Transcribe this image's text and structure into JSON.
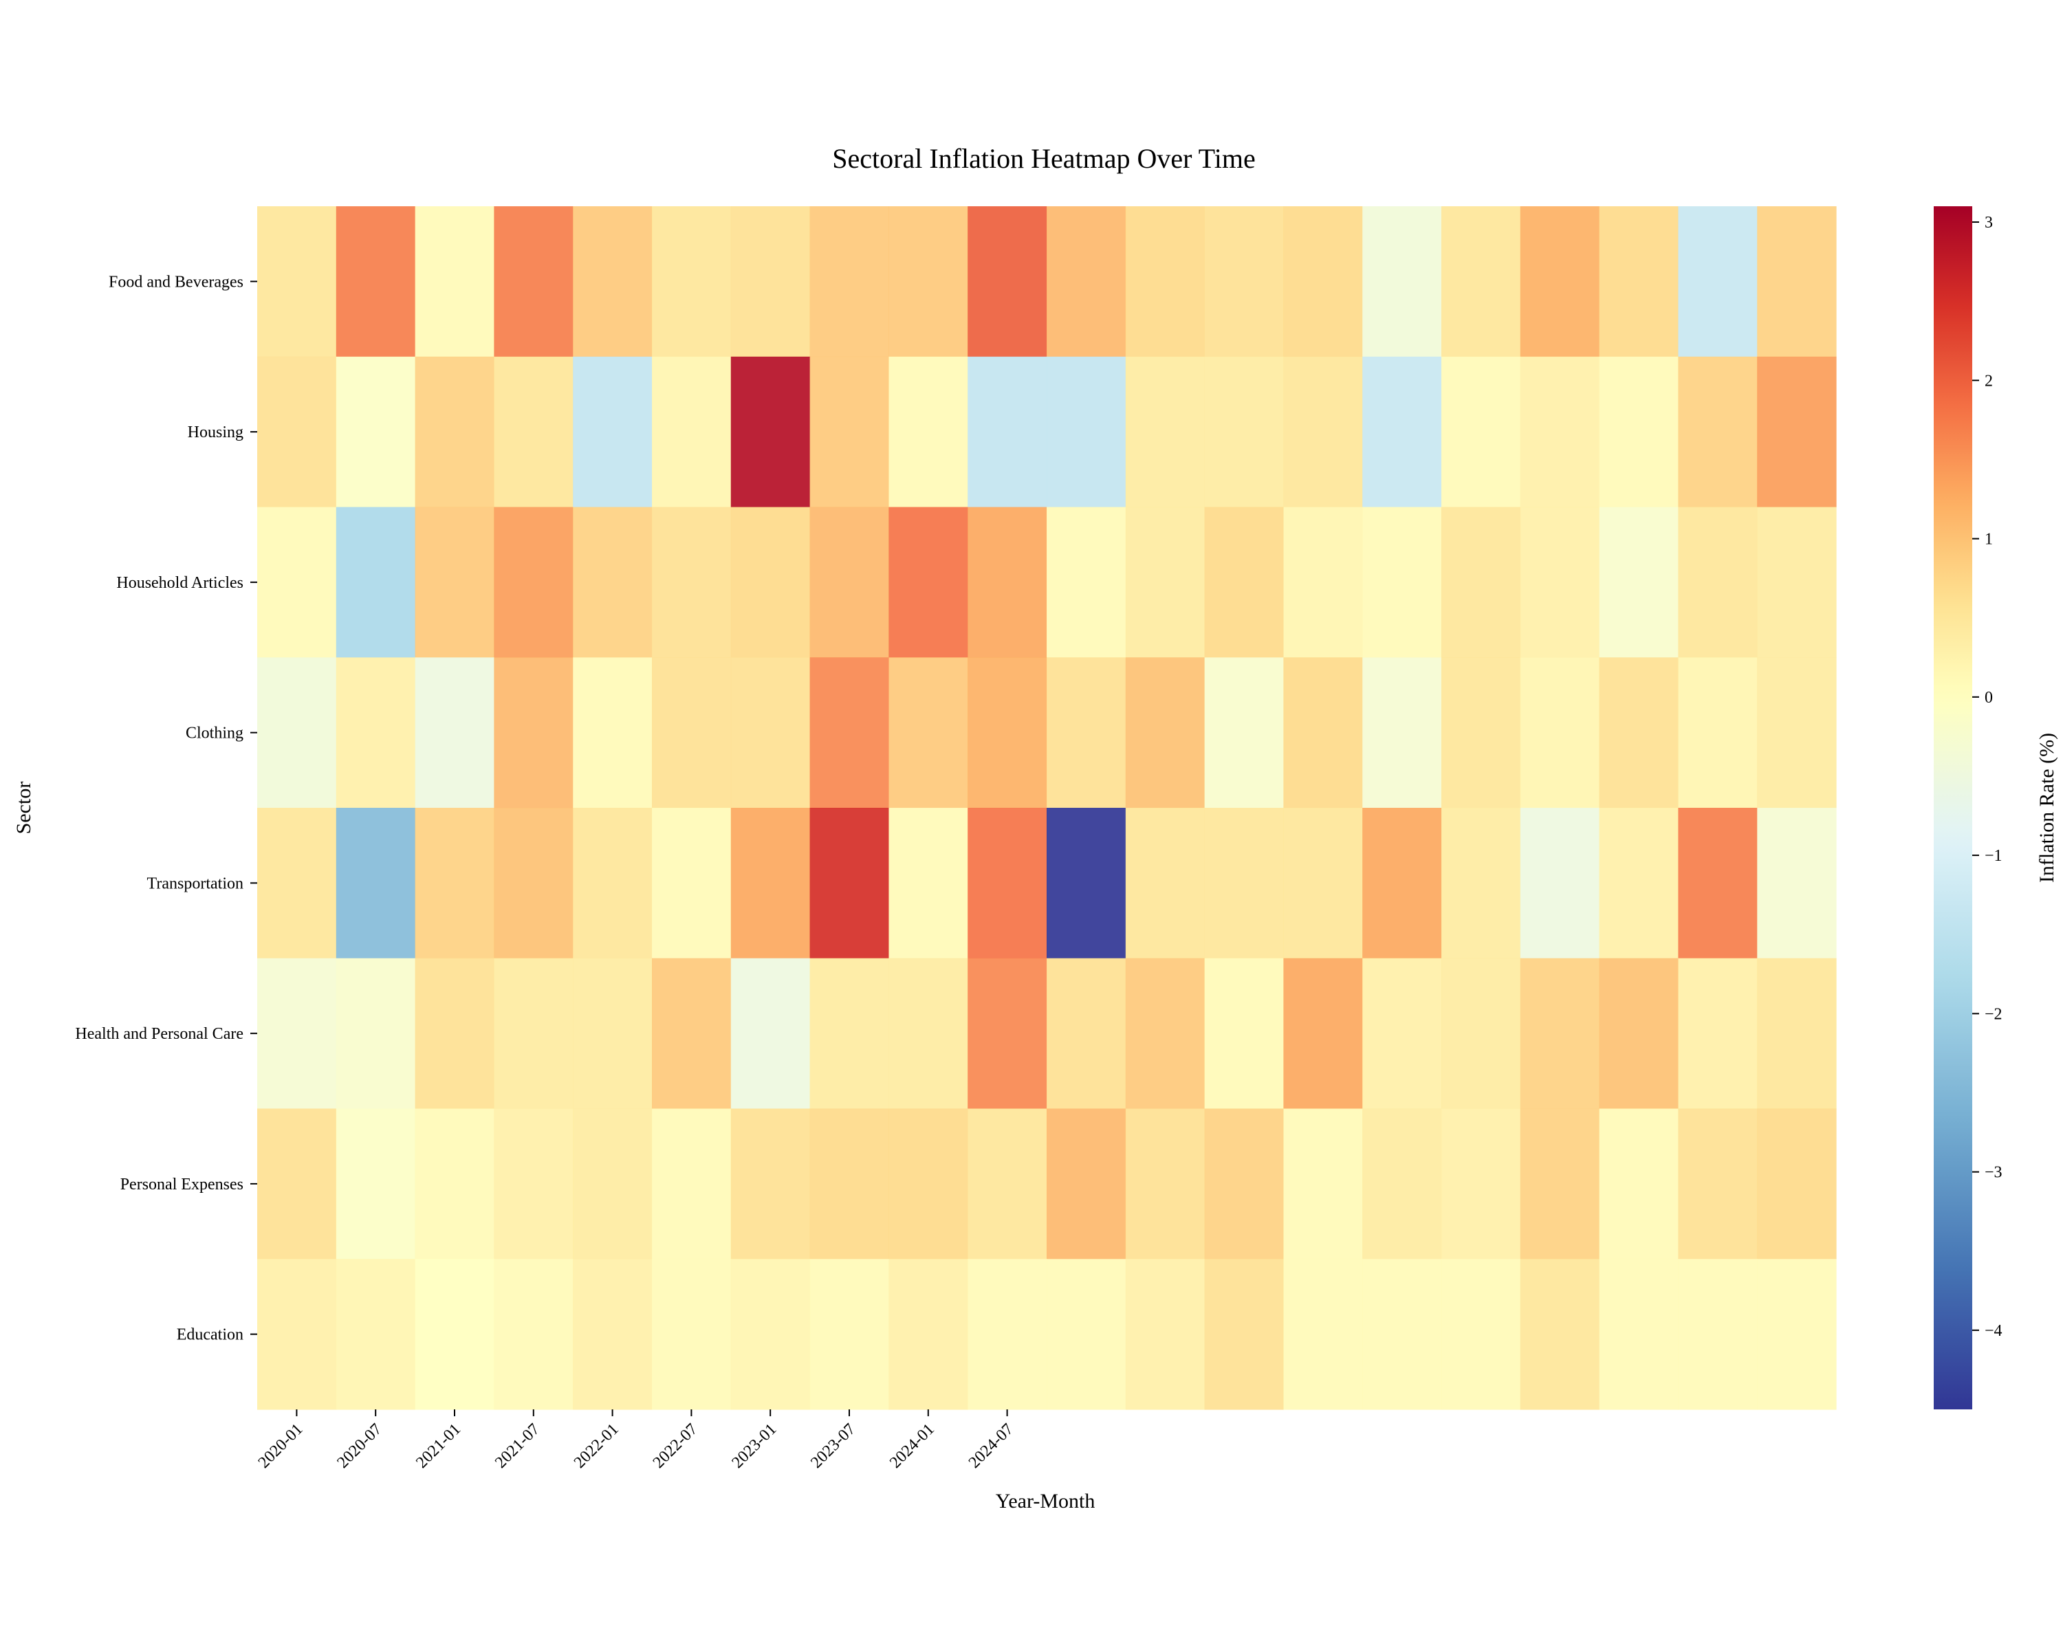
{
  "chart_data": {
    "type": "heatmap",
    "title": "Sectoral Inflation Heatmap Over Time",
    "xlabel": "Year-Month",
    "ylabel": "Sector",
    "colorbar_label": "Inflation Rate (%)",
    "colormap": "RdYlBu_r",
    "color_range": [
      -4.5,
      3.1
    ],
    "colorbar_ticks": [
      3,
      2,
      1,
      0,
      -1,
      -2,
      -3,
      -4
    ],
    "colorbar_tick_labels": [
      "3",
      "2",
      "1",
      "0",
      "−1",
      "−2",
      "−3",
      "−4"
    ],
    "sectors": [
      "Food and Beverages",
      "Housing",
      "Household Articles",
      "Clothing",
      "Transportation",
      "Health and Personal Care",
      "Personal Expenses",
      "Education"
    ],
    "x_tick_labels": [
      "2020-01",
      "2020-07",
      "2021-01",
      "2021-07",
      "2022-01",
      "2022-07",
      "2023-01",
      "2023-07",
      "2024-01",
      "2024-07"
    ],
    "n_columns": 20,
    "values": [
      [
        0.5,
        1.7,
        0.1,
        1.7,
        0.9,
        0.5,
        0.6,
        0.9,
        0.9,
        2.0,
        1.1,
        0.7,
        0.6,
        0.7,
        -0.4,
        0.5,
        1.2,
        0.7,
        -1.3,
        0.8
      ],
      [
        0.6,
        -0.1,
        0.8,
        0.5,
        -1.4,
        0.2,
        2.9,
        0.9,
        0.1,
        -1.4,
        -1.4,
        0.4,
        0.4,
        0.5,
        -1.3,
        0.1,
        0.3,
        0.1,
        0.8,
        1.4
      ],
      [
        0.1,
        -1.8,
        0.9,
        1.4,
        0.8,
        0.6,
        0.7,
        1.1,
        1.8,
        1.3,
        0.1,
        0.4,
        0.7,
        0.2,
        0.1,
        0.5,
        0.3,
        -0.2,
        0.5,
        0.4
      ],
      [
        -0.4,
        0.3,
        -0.5,
        1.1,
        0.1,
        0.6,
        0.6,
        1.6,
        0.9,
        1.2,
        0.6,
        1.0,
        -0.2,
        0.7,
        -0.3,
        0.5,
        0.2,
        0.6,
        0.2,
        0.4
      ],
      [
        0.5,
        -2.4,
        0.8,
        1.0,
        0.5,
        0.1,
        1.3,
        2.5,
        0.1,
        1.8,
        -4.5,
        0.5,
        0.5,
        0.5,
        1.3,
        0.4,
        -0.5,
        0.3,
        1.7,
        -0.3
      ],
      [
        -0.3,
        -0.2,
        0.6,
        0.4,
        0.4,
        0.9,
        -0.5,
        0.4,
        0.4,
        1.6,
        0.6,
        0.9,
        0.1,
        1.3,
        0.3,
        0.4,
        0.8,
        1.0,
        0.3,
        0.5
      ],
      [
        0.6,
        -0.1,
        0.1,
        0.3,
        0.4,
        0.1,
        0.6,
        0.7,
        0.7,
        0.5,
        1.1,
        0.6,
        0.8,
        0.1,
        0.4,
        0.3,
        0.8,
        0.1,
        0.6,
        0.7
      ],
      [
        0.3,
        0.2,
        0.0,
        0.1,
        0.3,
        0.1,
        0.2,
        0.1,
        0.3,
        0.1,
        0.1,
        0.3,
        0.6,
        0.1,
        0.1,
        0.1,
        0.5,
        0.1,
        0.1,
        0.1
      ]
    ]
  }
}
